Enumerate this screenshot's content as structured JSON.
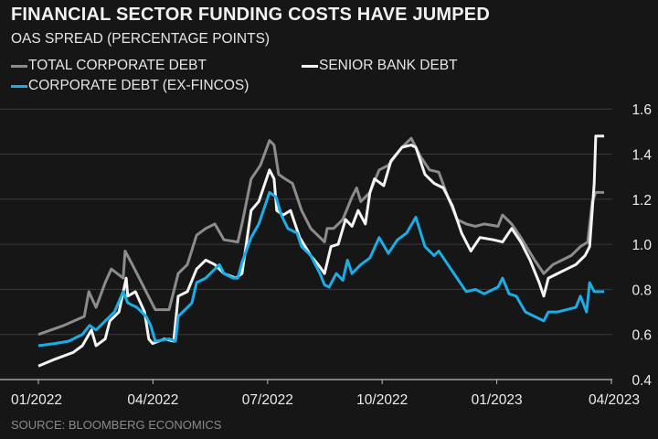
{
  "chart_data": {
    "type": "line",
    "title": "FINANCIAL SECTOR FUNDING COSTS HAVE JUMPED",
    "subtitle": "OAS SPREAD (PERCENTAGE POINTS)",
    "x_unit": "months since 01/2022",
    "xlabel": "",
    "ylabel": "",
    "xlim": [
      0,
      15
    ],
    "ylim": [
      0.4,
      1.6
    ],
    "x_ticks": [
      {
        "m": 0,
        "label": "01/2022"
      },
      {
        "m": 3,
        "label": "04/2022"
      },
      {
        "m": 6,
        "label": "07/2022"
      },
      {
        "m": 9,
        "label": "10/2022"
      },
      {
        "m": 12,
        "label": "01/2023"
      },
      {
        "m": 15,
        "label": "04/2023"
      }
    ],
    "y_ticks": [
      {
        "v": 0.4,
        "label": "0.4"
      },
      {
        "v": 0.6,
        "label": "0.6"
      },
      {
        "v": 0.8,
        "label": "0.8"
      },
      {
        "v": 1.0,
        "label": "1.0"
      },
      {
        "v": 1.2,
        "label": "1.2"
      },
      {
        "v": 1.4,
        "label": "1.4"
      },
      {
        "v": 1.6,
        "label": "1.6"
      }
    ],
    "grid": true,
    "legend_position": "top-left",
    "source": "SOURCE: BLOOMBERG ECONOMICS",
    "series": [
      {
        "name": "TOTAL CORPORATE DEBT",
        "color": "#8c8c8c",
        "points": [
          [
            0,
            0.6
          ],
          [
            0.67,
            0.64
          ],
          [
            1.2,
            0.68
          ],
          [
            1.32,
            0.79
          ],
          [
            1.51,
            0.72
          ],
          [
            1.75,
            0.83
          ],
          [
            1.91,
            0.89
          ],
          [
            2.22,
            0.85
          ],
          [
            2.27,
            0.97
          ],
          [
            2.46,
            0.91
          ],
          [
            2.58,
            0.87
          ],
          [
            2.82,
            0.79
          ],
          [
            3.06,
            0.71
          ],
          [
            3.42,
            0.71
          ],
          [
            3.66,
            0.87
          ],
          [
            3.9,
            0.91
          ],
          [
            4.14,
            1.04
          ],
          [
            4.38,
            1.07
          ],
          [
            4.62,
            1.09
          ],
          [
            4.86,
            1.02
          ],
          [
            5.22,
            1.01
          ],
          [
            5.33,
            1.09
          ],
          [
            5.57,
            1.29
          ],
          [
            5.81,
            1.35
          ],
          [
            6.05,
            1.46
          ],
          [
            6.17,
            1.44
          ],
          [
            6.29,
            1.31
          ],
          [
            6.46,
            1.29
          ],
          [
            6.65,
            1.27
          ],
          [
            6.89,
            1.15
          ],
          [
            7.13,
            1.07
          ],
          [
            7.49,
            1.01
          ],
          [
            7.56,
            1.07
          ],
          [
            7.73,
            1.07
          ],
          [
            7.97,
            1.11
          ],
          [
            8.21,
            1.21
          ],
          [
            8.33,
            1.25
          ],
          [
            8.44,
            1.19
          ],
          [
            8.68,
            1.23
          ],
          [
            8.92,
            1.33
          ],
          [
            9.16,
            1.35
          ],
          [
            9.52,
            1.43
          ],
          [
            9.76,
            1.47
          ],
          [
            10,
            1.39
          ],
          [
            10.24,
            1.33
          ],
          [
            10.48,
            1.32
          ],
          [
            10.72,
            1.21
          ],
          [
            10.96,
            1.11
          ],
          [
            11.2,
            1.09
          ],
          [
            11.44,
            1.08
          ],
          [
            11.67,
            1.09
          ],
          [
            12.03,
            1.08
          ],
          [
            12.15,
            1.13
          ],
          [
            12.27,
            1.11
          ],
          [
            12.39,
            1.09
          ],
          [
            12.63,
            1.03
          ],
          [
            12.99,
            0.93
          ],
          [
            13.23,
            0.87
          ],
          [
            13.47,
            0.91
          ],
          [
            13.71,
            0.93
          ],
          [
            13.95,
            0.95
          ],
          [
            14.19,
            0.99
          ],
          [
            14.38,
            1.01
          ],
          [
            14.5,
            1.19
          ],
          [
            14.59,
            1.23
          ],
          [
            14.69,
            1.23
          ]
        ]
      },
      {
        "name": "SENIOR BANK DEBT",
        "color": "#f4f4f4",
        "points": [
          [
            0,
            0.46
          ],
          [
            0.43,
            0.49
          ],
          [
            0.91,
            0.52
          ],
          [
            1.15,
            0.55
          ],
          [
            1.39,
            0.62
          ],
          [
            1.51,
            0.55
          ],
          [
            1.75,
            0.58
          ],
          [
            1.87,
            0.66
          ],
          [
            2.11,
            0.7
          ],
          [
            2.3,
            0.85
          ],
          [
            2.34,
            0.77
          ],
          [
            2.54,
            0.79
          ],
          [
            2.78,
            0.7
          ],
          [
            2.89,
            0.58
          ],
          [
            2.99,
            0.56
          ],
          [
            3.3,
            0.58
          ],
          [
            3.54,
            0.57
          ],
          [
            3.66,
            0.77
          ],
          [
            3.9,
            0.79
          ],
          [
            4.14,
            0.89
          ],
          [
            4.38,
            0.93
          ],
          [
            4.62,
            0.91
          ],
          [
            4.86,
            0.87
          ],
          [
            5.17,
            0.85
          ],
          [
            5.33,
            0.87
          ],
          [
            5.57,
            1.15
          ],
          [
            5.77,
            1.19
          ],
          [
            6.05,
            1.33
          ],
          [
            6.17,
            1.29
          ],
          [
            6.24,
            1.15
          ],
          [
            6.41,
            1.13
          ],
          [
            6.6,
            1.15
          ],
          [
            6.84,
            1.03
          ],
          [
            7.13,
            0.95
          ],
          [
            7.37,
            0.9
          ],
          [
            7.49,
            0.87
          ],
          [
            7.66,
            0.99
          ],
          [
            7.85,
            1.0
          ],
          [
            8.04,
            1.11
          ],
          [
            8.21,
            1.08
          ],
          [
            8.37,
            1.15
          ],
          [
            8.56,
            1.09
          ],
          [
            8.68,
            1.23
          ],
          [
            8.8,
            1.29
          ],
          [
            9.04,
            1.26
          ],
          [
            9.23,
            1.37
          ],
          [
            9.52,
            1.43
          ],
          [
            9.76,
            1.44
          ],
          [
            9.88,
            1.43
          ],
          [
            10.12,
            1.31
          ],
          [
            10.36,
            1.27
          ],
          [
            10.6,
            1.25
          ],
          [
            10.84,
            1.17
          ],
          [
            11.08,
            1.05
          ],
          [
            11.32,
            0.97
          ],
          [
            11.56,
            1.03
          ],
          [
            11.91,
            1.02
          ],
          [
            12.15,
            1.01
          ],
          [
            12.39,
            1.07
          ],
          [
            12.63,
            1.01
          ],
          [
            12.87,
            0.93
          ],
          [
            13.11,
            0.83
          ],
          [
            13.23,
            0.77
          ],
          [
            13.35,
            0.85
          ],
          [
            13.59,
            0.87
          ],
          [
            13.83,
            0.89
          ],
          [
            14.07,
            0.91
          ],
          [
            14.31,
            0.95
          ],
          [
            14.43,
            0.99
          ],
          [
            14.55,
            1.27
          ],
          [
            14.59,
            1.48
          ],
          [
            14.69,
            1.48
          ]
        ]
      },
      {
        "name": "CORPORATE DEBT (EX-FINCOS)",
        "color": "#1aaee8",
        "points": [
          [
            0,
            0.55
          ],
          [
            0.43,
            0.56
          ],
          [
            0.79,
            0.57
          ],
          [
            1.15,
            0.6
          ],
          [
            1.34,
            0.64
          ],
          [
            1.51,
            0.62
          ],
          [
            1.75,
            0.66
          ],
          [
            1.99,
            0.7
          ],
          [
            2.22,
            0.79
          ],
          [
            2.34,
            0.74
          ],
          [
            2.58,
            0.72
          ],
          [
            2.82,
            0.68
          ],
          [
            2.94,
            0.64
          ],
          [
            3.06,
            0.57
          ],
          [
            3.42,
            0.58
          ],
          [
            3.59,
            0.57
          ],
          [
            3.66,
            0.68
          ],
          [
            4.02,
            0.74
          ],
          [
            4.14,
            0.83
          ],
          [
            4.38,
            0.85
          ],
          [
            4.62,
            0.89
          ],
          [
            4.74,
            0.91
          ],
          [
            4.86,
            0.87
          ],
          [
            5.1,
            0.85
          ],
          [
            5.22,
            0.85
          ],
          [
            5.33,
            0.92
          ],
          [
            5.57,
            1.03
          ],
          [
            5.77,
            1.09
          ],
          [
            5.93,
            1.17
          ],
          [
            6.05,
            1.23
          ],
          [
            6.22,
            1.21
          ],
          [
            6.36,
            1.13
          ],
          [
            6.53,
            1.07
          ],
          [
            6.77,
            1.05
          ],
          [
            6.89,
            0.99
          ],
          [
            7.13,
            0.95
          ],
          [
            7.37,
            0.87
          ],
          [
            7.49,
            0.82
          ],
          [
            7.61,
            0.81
          ],
          [
            7.8,
            0.87
          ],
          [
            7.97,
            0.84
          ],
          [
            8.09,
            0.93
          ],
          [
            8.21,
            0.87
          ],
          [
            8.44,
            0.91
          ],
          [
            8.68,
            0.94
          ],
          [
            8.92,
            1.03
          ],
          [
            9.16,
            0.96
          ],
          [
            9.4,
            1.02
          ],
          [
            9.64,
            1.05
          ],
          [
            9.88,
            1.12
          ],
          [
            10.12,
            0.99
          ],
          [
            10.36,
            0.95
          ],
          [
            10.48,
            0.97
          ],
          [
            10.72,
            0.91
          ],
          [
            10.96,
            0.85
          ],
          [
            11.2,
            0.79
          ],
          [
            11.44,
            0.8
          ],
          [
            11.67,
            0.78
          ],
          [
            11.91,
            0.8
          ],
          [
            12.03,
            0.81
          ],
          [
            12.15,
            0.85
          ],
          [
            12.32,
            0.78
          ],
          [
            12.51,
            0.77
          ],
          [
            12.75,
            0.7
          ],
          [
            12.99,
            0.68
          ],
          [
            13.23,
            0.66
          ],
          [
            13.35,
            0.7
          ],
          [
            13.59,
            0.7
          ],
          [
            13.83,
            0.71
          ],
          [
            14.07,
            0.72
          ],
          [
            14.19,
            0.77
          ],
          [
            14.35,
            0.7
          ],
          [
            14.43,
            0.83
          ],
          [
            14.55,
            0.79
          ],
          [
            14.69,
            0.79
          ]
        ]
      }
    ]
  }
}
